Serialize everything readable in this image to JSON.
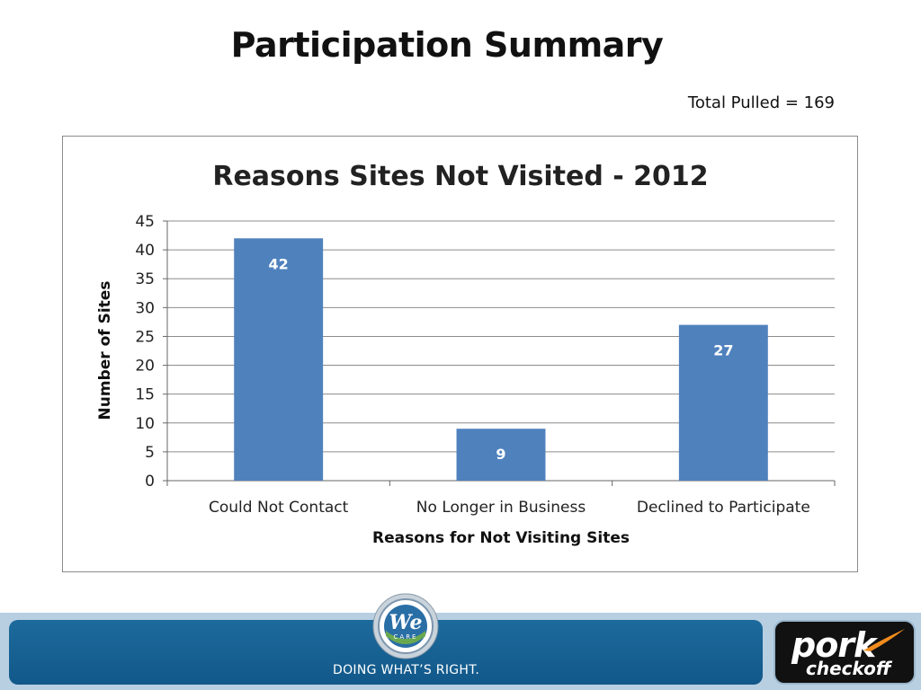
{
  "slide": {
    "title": "Participation Summary",
    "total_note": "Total Pulled = 169"
  },
  "chart_data": {
    "type": "bar",
    "title": "Reasons Sites Not Visited - 2012",
    "xlabel": "Reasons for Not Visiting Sites",
    "ylabel": "Number of Sites",
    "categories": [
      "Could Not Contact",
      "No Longer in Business",
      "Declined to Participate"
    ],
    "values": [
      42,
      9,
      27
    ],
    "data_labels": [
      "42",
      "9",
      "27"
    ],
    "ylim": [
      0,
      45
    ],
    "yticks": [
      0,
      5,
      10,
      15,
      20,
      25,
      30,
      35,
      40,
      45
    ],
    "grid": true,
    "legend": "none",
    "bar_color": "#4f81bd",
    "grid_color": "#8c8c8c"
  },
  "footer": {
    "tagline": "DOING WHAT’S RIGHT.",
    "seal_text": "We",
    "seal_subtext": "CARE",
    "brand_name": "pork",
    "brand_sub": "checkoff",
    "colors": {
      "band": "#b8cfe2",
      "bar": "#1d6a9c",
      "logo_bg": "#111111",
      "swoosh": "#f28c1e"
    }
  }
}
